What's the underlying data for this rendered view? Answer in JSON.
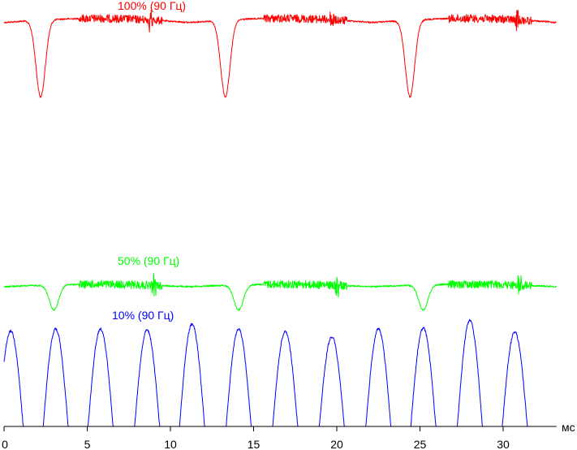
{
  "chart_data": {
    "type": "line",
    "x_unit": "мс",
    "xlim": [
      0,
      33.2
    ],
    "x_ticks": [
      0,
      5,
      10,
      15,
      20,
      25,
      30
    ],
    "x_tick_labels": [
      "0",
      "5",
      "10",
      "15",
      "20",
      "25",
      "30"
    ],
    "series": [
      {
        "name": "100% (90 Гц)",
        "color": "#ff0000",
        "baseline_level": 0.93,
        "dip_level": 0.07,
        "dip_times_ms": [
          2.2,
          13.3,
          24.4
        ],
        "glitch_times_ms": [
          8.8,
          19.7,
          30.8
        ]
      },
      {
        "name": "50% (90 Гц)",
        "color": "#00ff00",
        "baseline_level": 0.5,
        "dip_level": 0.06,
        "dip_times_ms": [
          3.0,
          14.1,
          25.2
        ],
        "glitch_times_ms": [
          9.0,
          20.0,
          31.0
        ]
      },
      {
        "name": "10% (90 Гц)",
        "color": "#0000ff",
        "baseline_level": 0.0,
        "peak_times_ms": [
          0.4,
          3.1,
          5.8,
          8.6,
          11.3,
          14.1,
          16.9,
          19.7,
          22.5,
          25.2,
          28.0,
          30.7
        ],
        "peak_levels": [
          0.98,
          1.0,
          1.0,
          0.99,
          1.05,
          1.0,
          0.97,
          0.92,
          1.0,
          1.01,
          1.09,
          0.97
        ]
      }
    ]
  }
}
